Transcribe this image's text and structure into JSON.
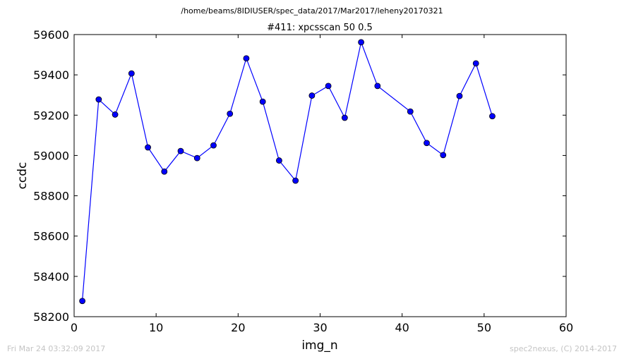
{
  "chart_data": {
    "type": "line",
    "suptitle": "/home/beams/8IDIUSER/spec_data/2017/Mar2017/leheny20170321",
    "title": "#411: xpcsscan 50 0.5",
    "xlabel": "img_n",
    "ylabel": "ccdc",
    "xlim": [
      0,
      60
    ],
    "ylim": [
      58200,
      59600
    ],
    "xticks": [
      0,
      10,
      20,
      30,
      40,
      50,
      60
    ],
    "yticks": [
      58200,
      58400,
      58600,
      58800,
      59000,
      59200,
      59400,
      59600
    ],
    "grid": false,
    "line_color": "#0000ff",
    "marker_color": "#0000ff",
    "series": [
      {
        "x": [
          1,
          3,
          5,
          7,
          9,
          11,
          13,
          15,
          17,
          19,
          21,
          23,
          25,
          27,
          29,
          31,
          33,
          35,
          37,
          41,
          43,
          45,
          47,
          49,
          51
        ],
        "y": [
          58278,
          59278,
          59203,
          59407,
          59040,
          58920,
          59022,
          58987,
          59050,
          59207,
          59482,
          59267,
          58975,
          58875,
          59297,
          59345,
          59187,
          59562,
          59345,
          59218,
          59062,
          59002,
          59295,
          59457,
          59195
        ]
      }
    ]
  },
  "footer": {
    "timestamp": "Fri Mar 24 03:32:09 2017",
    "credit": "spec2nexus, (C) 2014-2017"
  }
}
